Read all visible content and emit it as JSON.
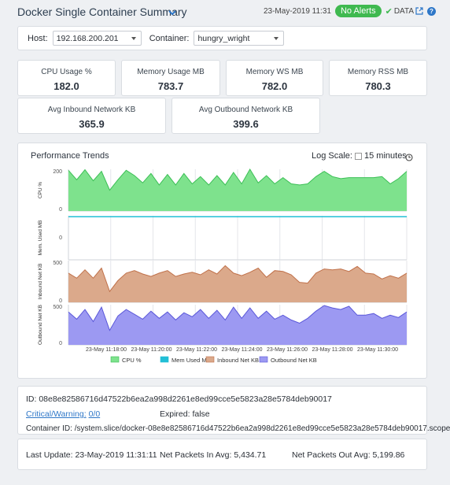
{
  "header": {
    "title": "Docker Single Container Summary",
    "date": "23-May-2019 11:31",
    "alert_badge": "No Alerts",
    "data_label": "DATA",
    "help_symbol": "?"
  },
  "filters": {
    "host_label": "Host:",
    "host_value": "192.168.200.201",
    "container_label": "Container:",
    "container_value": "hungry_wright"
  },
  "kpis": [
    {
      "label": "CPU Usage %",
      "value": "182.0"
    },
    {
      "label": "Memory Usage MB",
      "value": "783.7"
    },
    {
      "label": "Memory WS MB",
      "value": "782.0"
    },
    {
      "label": "Memory RSS MB",
      "value": "780.3"
    },
    {
      "label": "Avg Inbound Network KB",
      "value": "365.9"
    },
    {
      "label": "Avg Outbound Network KB",
      "value": "399.6"
    }
  ],
  "trends": {
    "title": "Performance Trends",
    "log_scale_label": "Log Scale:",
    "log_scale": false,
    "range": "15 minutes"
  },
  "chart_data": {
    "type": "area",
    "x": [
      "11:17:00",
      "11:17:20",
      "11:17:40",
      "11:18:00",
      "11:18:20",
      "11:18:40",
      "11:19:00",
      "11:19:20",
      "11:19:40",
      "11:20:00",
      "11:20:20",
      "11:20:40",
      "11:21:00",
      "11:21:20",
      "11:21:40",
      "11:22:00",
      "11:22:20",
      "11:22:40",
      "11:23:00",
      "11:23:20",
      "11:23:40",
      "11:24:00",
      "11:24:20",
      "11:24:40",
      "11:25:00",
      "11:25:20",
      "11:25:40",
      "11:26:00",
      "11:26:20",
      "11:26:40",
      "11:27:00",
      "11:27:20",
      "11:27:40",
      "11:28:00",
      "11:28:20",
      "11:28:40",
      "11:29:00",
      "11:29:20",
      "11:29:40",
      "11:30:00",
      "11:30:20",
      "11:30:40"
    ],
    "x_tick_labels": [
      "23-May 11:18:00",
      "23-May 11:20:00",
      "23-May 11:22:00",
      "23-May 11:24:00",
      "23-May 11:26:00",
      "23-May 11:28:00",
      "23-May 11:30:00"
    ],
    "panels": [
      {
        "ylabel": "CPU %",
        "ylim": [
          0,
          200
        ],
        "ticks": [
          "200",
          "0"
        ],
        "series": "CPU %",
        "color": "#7ee28d",
        "line": "#3bbf55",
        "values": [
          195,
          150,
          198,
          145,
          190,
          100,
          150,
          195,
          170,
          135,
          180,
          125,
          175,
          125,
          180,
          130,
          165,
          125,
          170,
          125,
          185,
          130,
          200,
          135,
          170,
          130,
          160,
          130,
          125,
          130,
          165,
          190,
          165,
          155,
          160,
          160,
          160,
          160,
          165,
          130,
          155,
          190
        ]
      },
      {
        "ylabel": "Mem. Used MB",
        "ylim": [
          0,
          800
        ],
        "ticks": [
          "0"
        ],
        "series": "Mem Used MB",
        "color": "#22bfd6",
        "line": "#22bfd6",
        "values": [
          783,
          783,
          783,
          783,
          783,
          783,
          783,
          783,
          783,
          783,
          783,
          783,
          783,
          783,
          783,
          783,
          783,
          783,
          783,
          783,
          783,
          783,
          783,
          783,
          783,
          783,
          783,
          783,
          783,
          783,
          783,
          783,
          783,
          783,
          783,
          783,
          783,
          783,
          783,
          783,
          783,
          783
        ]
      },
      {
        "ylabel": "Inbound Net KB",
        "ylim": [
          0,
          500
        ],
        "ticks": [
          "500",
          "0"
        ],
        "series": "Inbound Net KB",
        "color": "#dba98b",
        "line": "#c0714a",
        "values": [
          350,
          290,
          390,
          290,
          410,
          130,
          260,
          350,
          380,
          340,
          310,
          350,
          380,
          310,
          340,
          360,
          330,
          390,
          340,
          440,
          350,
          320,
          360,
          410,
          300,
          380,
          370,
          330,
          240,
          230,
          350,
          400,
          390,
          400,
          370,
          430,
          350,
          340,
          280,
          320,
          290,
          350
        ]
      },
      {
        "ylabel": "Outbound Net KB",
        "ylim": [
          0,
          500
        ],
        "ticks": [
          "500",
          "0"
        ],
        "series": "Outbound Net KB",
        "color": "#9c99f2",
        "line": "#5a57d9",
        "values": [
          410,
          320,
          440,
          290,
          470,
          180,
          360,
          440,
          380,
          320,
          420,
          330,
          410,
          310,
          400,
          350,
          440,
          330,
          430,
          310,
          470,
          330,
          460,
          330,
          420,
          320,
          370,
          310,
          270,
          330,
          420,
          490,
          460,
          440,
          480,
          370,
          370,
          390,
          330,
          370,
          340,
          410
        ]
      }
    ],
    "legend": [
      "CPU %",
      "Mem Used MB",
      "Inbound Net KB",
      "Outbound Net KB"
    ],
    "grid": true
  },
  "info": {
    "id_text": "ID: 08e8e82586716d47522b6ea2a998d2261e8ed99cce5e5823a28e5784deb90017",
    "critical_label": "Critical/Warning:",
    "critical_value": "0/0",
    "expired_label": "Expired:",
    "expired_value": "false",
    "container_id_text": "Container ID: /system.slice/docker-08e8e82586716d47522b6ea2a998d2261e8ed99cce5e5823a28e5784deb90017.scope"
  },
  "footer": {
    "last_update": "Last Update: 23-May-2019 11:31:11",
    "net_in": "Net Packets In Avg: 5,434.71",
    "net_out": "Net Packets Out Avg: 5,199.86"
  }
}
